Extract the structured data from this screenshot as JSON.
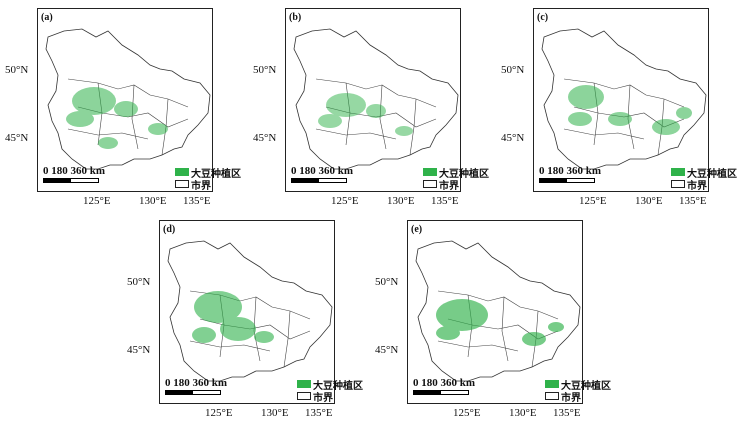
{
  "panels": [
    {
      "label": "(a)"
    },
    {
      "label": "(b)"
    },
    {
      "label": "(c)"
    },
    {
      "label": "(d)"
    },
    {
      "label": "(e)"
    }
  ],
  "axes": {
    "lat_labels": [
      "50°N",
      "45°N"
    ],
    "lon_labels": [
      "125°E",
      "130°E",
      "135°E"
    ]
  },
  "scale": {
    "text": "0   180 360 km"
  },
  "legend": {
    "soybean_area": "大豆种植区",
    "city_boundary": "市界"
  },
  "colors": {
    "soybean": "#2fb24a",
    "boundary": "#333333"
  }
}
